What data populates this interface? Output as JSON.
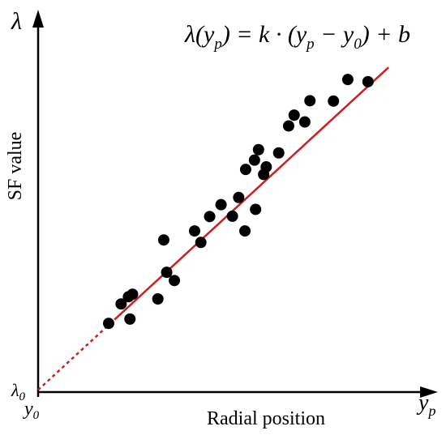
{
  "chart_data": {
    "type": "scatter",
    "title": "",
    "equation": {
      "lhs": "λ(y",
      "lhs_sub": "p",
      "mid": ") = k · (y",
      "mid_sub": "p",
      "minus": " − y",
      "minus_sub": "0",
      "rhs": ") + b"
    },
    "xlabel": "Radial position",
    "ylabel": "SF value",
    "x_axis_symbol": "y",
    "x_axis_symbol_sub": "p",
    "y_axis_symbol": "λ",
    "origin_x_label": "y",
    "origin_x_label_sub": "0",
    "origin_y_label": "λ",
    "origin_y_label_sub": "0",
    "xlim": [
      0,
      100
    ],
    "ylim": [
      0,
      100
    ],
    "grid": false,
    "legend": "none",
    "colors": {
      "points": "#000000",
      "fit_line": "#cc1f1f",
      "axes": "#000000"
    },
    "fit_line": {
      "slope": 0.94,
      "intercept": 0.6,
      "x_solid_start": 21.0,
      "x_solid_end": 95.4,
      "x_dashed_start": 0,
      "x_dashed_end": 21.0
    },
    "points": [
      {
        "x": 19.2,
        "y": 19.1
      },
      {
        "x": 22.6,
        "y": 24.5
      },
      {
        "x": 24.6,
        "y": 26.5
      },
      {
        "x": 25.7,
        "y": 27.2
      },
      {
        "x": 25.0,
        "y": 20.3
      },
      {
        "x": 32.6,
        "y": 25.9
      },
      {
        "x": 35.0,
        "y": 33.3
      },
      {
        "x": 37.1,
        "y": 31.0
      },
      {
        "x": 34.2,
        "y": 42.3
      },
      {
        "x": 44.3,
        "y": 41.6
      },
      {
        "x": 42.6,
        "y": 44.8
      },
      {
        "x": 46.7,
        "y": 48.8
      },
      {
        "x": 49.8,
        "y": 52.1
      },
      {
        "x": 52.9,
        "y": 48.9
      },
      {
        "x": 54.6,
        "y": 54.1
      },
      {
        "x": 56.3,
        "y": 44.8
      },
      {
        "x": 59.2,
        "y": 50.8
      },
      {
        "x": 56.5,
        "y": 61.9
      },
      {
        "x": 58.9,
        "y": 64.5
      },
      {
        "x": 60.0,
        "y": 67.4
      },
      {
        "x": 61.4,
        "y": 60.5
      },
      {
        "x": 62.1,
        "y": 62.6
      },
      {
        "x": 65.5,
        "y": 66.5
      },
      {
        "x": 68.2,
        "y": 74.0
      },
      {
        "x": 69.7,
        "y": 77.0
      },
      {
        "x": 72.6,
        "y": 75.1
      },
      {
        "x": 74.0,
        "y": 81.0
      },
      {
        "x": 80.4,
        "y": 80.9
      },
      {
        "x": 84.3,
        "y": 86.9
      },
      {
        "x": 89.8,
        "y": 86.3
      }
    ]
  }
}
